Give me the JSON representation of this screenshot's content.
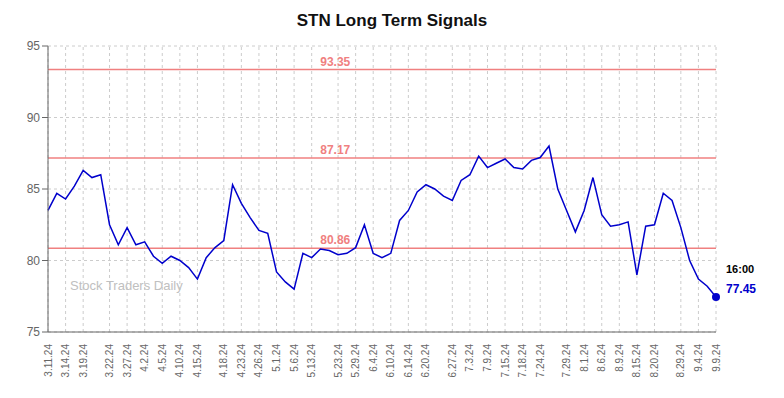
{
  "chart_data": {
    "type": "line",
    "title": "STN Long Term Signals",
    "categories": [
      "3.11.24",
      null,
      "3.14.24",
      null,
      "3.19.24",
      null,
      null,
      "3.22.24",
      null,
      "3.27.24",
      null,
      "4.2.24",
      null,
      "4.5.24",
      null,
      "4.10.24",
      null,
      "4.15.24",
      null,
      null,
      "4.18.24",
      null,
      "4.23.24",
      null,
      "4.26.24",
      null,
      "5.1.24",
      null,
      "5.6.24",
      null,
      "5.13.24",
      null,
      null,
      "5.23.24",
      null,
      "5.29.24",
      null,
      "6.4.24",
      null,
      "6.10.24",
      null,
      "6.14.24",
      null,
      "6.20.24",
      null,
      null,
      "6.27.24",
      null,
      "7.3.24",
      null,
      "7.9.24",
      null,
      "7.15.24",
      null,
      "7.18.24",
      null,
      "7.24.24",
      null,
      null,
      "7.29.24",
      null,
      "8.1.24",
      null,
      "8.6.24",
      null,
      "8.9.24",
      null,
      "8.15.24",
      null,
      "8.20.24",
      null,
      null,
      "8.29.24",
      null,
      "9.4.24",
      null,
      "9.9.24"
    ],
    "values": [
      83.5,
      84.7,
      84.3,
      85.2,
      86.3,
      85.8,
      86.0,
      82.5,
      81.1,
      82.3,
      81.1,
      81.3,
      80.3,
      79.8,
      80.3,
      80.0,
      79.5,
      78.7,
      80.2,
      80.9,
      81.4,
      85.3,
      84.0,
      83.0,
      82.1,
      81.9,
      79.2,
      78.5,
      78.0,
      80.5,
      80.2,
      80.8,
      80.7,
      80.4,
      80.5,
      80.9,
      82.5,
      80.5,
      80.2,
      80.5,
      82.8,
      83.5,
      84.8,
      85.3,
      85.0,
      84.5,
      84.2,
      85.6,
      86.0,
      87.3,
      86.5,
      86.8,
      87.1,
      86.5,
      86.4,
      87.0,
      87.2,
      88.0,
      85.0,
      83.5,
      82.0,
      83.5,
      85.8,
      83.2,
      82.4,
      82.5,
      82.7,
      79.0,
      82.4,
      82.5,
      84.7,
      84.2,
      82.3,
      80.0,
      78.7,
      78.2,
      77.45
    ],
    "color": "#0000cc",
    "ylim": [
      75,
      95
    ],
    "yticks": [
      75,
      80,
      85,
      90,
      95
    ],
    "grid": true,
    "reference_lines": [
      {
        "value": 93.35,
        "label": "93.35",
        "color": "#f08080"
      },
      {
        "value": 87.17,
        "label": "87.17",
        "color": "#f08080"
      },
      {
        "value": 80.86,
        "label": "80.86",
        "color": "#f08080"
      }
    ],
    "annotations": [
      {
        "text": "16:00",
        "color": "#000000"
      },
      {
        "text": "77.45",
        "color": "#0000cc"
      },
      {
        "text": "Stock Traders Daily",
        "color": "#c0c0c0"
      }
    ]
  }
}
